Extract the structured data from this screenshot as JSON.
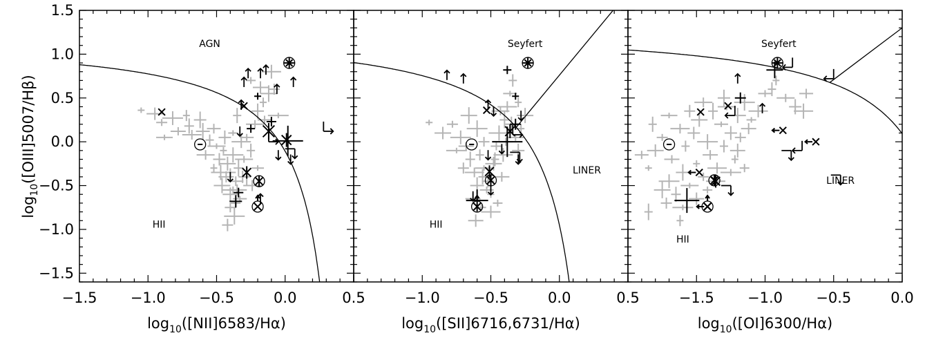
{
  "chart_data": [
    {
      "type": "scatter",
      "panel": "NII",
      "xlabel_parts": {
        "pre": "log",
        "sub": "10",
        "post": "([NII]6583/Hα)"
      },
      "ylabel_parts": {
        "pre": "log",
        "sub": "10",
        "post": "([OIII]5007/Hβ)"
      },
      "xlim": [
        -1.5,
        0.5
      ],
      "ylim": [
        -1.6,
        1.5
      ],
      "xticks": [
        -1.5,
        -1.0,
        -0.5,
        0.0,
        0.5
      ],
      "xtick_labels": [
        "−1.5",
        "−1.0",
        "−0.5",
        "0.0",
        "0.5"
      ],
      "yticks": [
        -1.5,
        -1.0,
        -0.5,
        0.0,
        0.5,
        1.0,
        1.5
      ],
      "ytick_labels": [
        "−1.5",
        "−1.0",
        "−0.5",
        "0.0",
        "0.5",
        "1.0",
        "1.5"
      ],
      "curve": {
        "a": 0.61,
        "b": 0.47,
        "c": 1.19
      },
      "regions": [
        {
          "text": "AGN",
          "x": -0.55,
          "y": 1.08
        },
        {
          "text": "HII",
          "x": -0.92,
          "y": -0.98
        }
      ],
      "gray_points": [
        [
          -1.05,
          0.36
        ],
        [
          -0.95,
          0.32
        ],
        [
          -0.9,
          0.22
        ],
        [
          -0.82,
          0.27
        ],
        [
          -0.78,
          0.12
        ],
        [
          -0.7,
          0.18
        ],
        [
          -0.68,
          0.08
        ],
        [
          -0.6,
          0.12
        ],
        [
          -0.55,
          0.02
        ],
        [
          -0.5,
          -0.05
        ],
        [
          -0.48,
          -0.2
        ],
        [
          -0.45,
          -0.1
        ],
        [
          -0.42,
          -0.25
        ],
        [
          -0.4,
          -0.35
        ],
        [
          -0.38,
          -0.15
        ],
        [
          -0.36,
          -0.45
        ],
        [
          -0.34,
          -0.3
        ],
        [
          -0.35,
          -0.55
        ],
        [
          -0.33,
          -0.65
        ],
        [
          -0.31,
          -0.4
        ],
        [
          -0.3,
          -0.2
        ],
        [
          -0.44,
          0.05
        ],
        [
          -0.52,
          -0.3
        ],
        [
          -0.46,
          -0.5
        ],
        [
          -0.4,
          -0.75
        ],
        [
          -0.37,
          -0.85
        ],
        [
          -0.43,
          -0.4
        ],
        [
          -0.38,
          0.1
        ],
        [
          -0.32,
          0.0
        ],
        [
          -0.28,
          0.05
        ],
        [
          -0.25,
          -0.1
        ],
        [
          -0.22,
          0.2
        ],
        [
          -0.2,
          0.35
        ],
        [
          -0.16,
          0.45
        ],
        [
          -0.12,
          0.55
        ],
        [
          -0.08,
          0.6
        ],
        [
          -0.05,
          0.3
        ],
        [
          -0.18,
          0.62
        ],
        [
          -0.25,
          0.7
        ],
        [
          -0.1,
          0.8
        ],
        [
          -0.15,
          0.25
        ],
        [
          -0.35,
          0.3
        ],
        [
          -0.58,
          -0.15
        ],
        [
          -0.62,
          0.25
        ],
        [
          -0.72,
          0.3
        ],
        [
          -0.88,
          0.05
        ],
        [
          -0.42,
          -0.95
        ],
        [
          -0.38,
          -0.55
        ],
        [
          -0.4,
          -0.6
        ],
        [
          -0.36,
          -0.7
        ],
        [
          -0.47,
          -0.35
        ],
        [
          -0.52,
          0.15
        ],
        [
          -0.28,
          -0.4
        ],
        [
          -0.24,
          -0.5
        ],
        [
          -0.2,
          -0.3
        ]
      ],
      "markers": [
        {
          "shape": "x",
          "x": -0.9,
          "y": 0.34,
          "s": 7
        },
        {
          "shape": "odot",
          "x": -0.62,
          "y": -0.03,
          "s": 8
        },
        {
          "shape": "cross",
          "x": -0.36,
          "y": -0.68,
          "s": 9
        },
        {
          "shape": "cross",
          "x": -0.34,
          "y": -0.58,
          "s": 7
        },
        {
          "shape": "star",
          "x": -0.28,
          "y": -0.35,
          "s": 9
        },
        {
          "shape": "star",
          "x": -0.12,
          "y": 0.12,
          "s": 12
        },
        {
          "shape": "cross",
          "x": 0.02,
          "y": 0.01,
          "s": 22
        },
        {
          "shape": "star",
          "x": 0.01,
          "y": 0.02,
          "s": 10
        },
        {
          "shape": "ostar",
          "x": 0.03,
          "y": 0.9,
          "s": 8
        },
        {
          "shape": "oplus",
          "x": -0.19,
          "y": -0.45,
          "s": 8
        },
        {
          "shape": "otimes",
          "x": -0.2,
          "y": -0.74,
          "s": 8
        },
        {
          "shape": "x",
          "x": -0.3,
          "y": 0.41,
          "s": 7
        },
        {
          "shape": "cross",
          "x": -0.1,
          "y": 0.23,
          "s": 7
        },
        {
          "shape": "cross",
          "x": -0.25,
          "y": 0.15,
          "s": 6
        },
        {
          "shape": "cross",
          "x": -0.2,
          "y": 0.52,
          "s": 5
        }
      ],
      "arrows": [
        {
          "x": -0.32,
          "y": 0.42,
          "d": "u"
        },
        {
          "x": -0.3,
          "y": 0.68,
          "d": "u"
        },
        {
          "x": -0.27,
          "y": 0.78,
          "d": "u"
        },
        {
          "x": -0.18,
          "y": 0.78,
          "d": "u"
        },
        {
          "x": -0.14,
          "y": 0.82,
          "d": "u"
        },
        {
          "x": -0.06,
          "y": 0.6,
          "d": "u"
        },
        {
          "x": 0.06,
          "y": 0.68,
          "d": "u"
        },
        {
          "x": -0.33,
          "y": 0.12,
          "d": "d"
        },
        {
          "x": -0.4,
          "y": -0.4,
          "d": "d"
        },
        {
          "x": -0.18,
          "y": -0.65,
          "d": "u"
        },
        {
          "x": -0.12,
          "y": 0.0,
          "d": "ru"
        },
        {
          "x": 0.28,
          "y": 0.12,
          "d": "ru"
        },
        {
          "x": 0.0,
          "y": -0.08,
          "d": "rd"
        },
        {
          "x": -0.05,
          "y": -0.15,
          "d": "d"
        },
        {
          "x": 0.04,
          "y": -0.2,
          "d": "d"
        }
      ]
    },
    {
      "type": "scatter",
      "panel": "SII",
      "xlabel_parts": {
        "pre": "log",
        "sub": "10",
        "post": "([SII]6716,6731/Hα)"
      },
      "xlim": [
        -1.5,
        0.5
      ],
      "ylim": [
        -1.6,
        1.5
      ],
      "xticks": [
        -1.0,
        -0.5,
        0.0,
        0.5
      ],
      "xtick_labels": [
        "−1.0",
        "−0.5",
        "0.0",
        "0.5"
      ],
      "curve": {
        "a": 0.72,
        "b": 0.32,
        "c": 1.3
      },
      "line": {
        "slope": 1.89,
        "intercept": 0.76
      },
      "regions": [
        {
          "text": "Seyfert",
          "x": -0.25,
          "y": 1.08
        },
        {
          "text": "LINER",
          "x": 0.2,
          "y": -0.36
        },
        {
          "text": "HII",
          "x": -0.9,
          "y": -0.98
        }
      ],
      "gray_points": [
        [
          -0.95,
          0.22
        ],
        [
          -0.85,
          0.1
        ],
        [
          -0.78,
          0.2
        ],
        [
          -0.72,
          0.05
        ],
        [
          -0.68,
          -0.05
        ],
        [
          -0.65,
          -0.2
        ],
        [
          -0.62,
          -0.35
        ],
        [
          -0.6,
          -0.5
        ],
        [
          -0.58,
          -0.15
        ],
        [
          -0.55,
          -0.3
        ],
        [
          -0.52,
          -0.45
        ],
        [
          -0.5,
          -0.6
        ],
        [
          -0.48,
          -0.25
        ],
        [
          -0.46,
          -0.05
        ],
        [
          -0.44,
          0.1
        ],
        [
          -0.42,
          -0.4
        ],
        [
          -0.4,
          0.25
        ],
        [
          -0.38,
          0.4
        ],
        [
          -0.36,
          0.55
        ],
        [
          -0.34,
          0.7
        ],
        [
          -0.32,
          0.05
        ],
        [
          -0.3,
          -0.1
        ],
        [
          -0.28,
          0.15
        ],
        [
          -0.25,
          0.3
        ],
        [
          -0.55,
          0.0
        ],
        [
          -0.6,
          0.15
        ],
        [
          -0.63,
          -0.65
        ],
        [
          -0.57,
          -0.75
        ],
        [
          -0.5,
          -0.8
        ],
        [
          -0.53,
          -0.55
        ],
        [
          -0.47,
          -0.2
        ],
        [
          -0.43,
          0.35
        ],
        [
          -0.35,
          0.2
        ],
        [
          -0.3,
          0.45
        ],
        [
          -0.66,
          0.3
        ],
        [
          -0.7,
          -0.3
        ],
        [
          -0.75,
          -0.1
        ],
        [
          -0.61,
          -0.9
        ],
        [
          -0.45,
          -0.7
        ],
        [
          -0.41,
          -0.15
        ],
        [
          -0.39,
          0.0
        ],
        [
          -0.56,
          -0.4
        ]
      ],
      "markers": [
        {
          "shape": "cross",
          "x": -0.6,
          "y": -0.67,
          "s": 16
        },
        {
          "shape": "odot",
          "x": -0.64,
          "y": -0.03,
          "s": 8
        },
        {
          "shape": "x",
          "x": -0.53,
          "y": 0.36,
          "s": 7
        },
        {
          "shape": "star",
          "x": -0.51,
          "y": -0.34,
          "s": 9
        },
        {
          "shape": "cross",
          "x": -0.38,
          "y": 0.0,
          "s": 22
        },
        {
          "shape": "star",
          "x": -0.36,
          "y": 0.12,
          "s": 10
        },
        {
          "shape": "ostar",
          "x": -0.23,
          "y": 0.9,
          "s": 8
        },
        {
          "shape": "oplus",
          "x": -0.5,
          "y": -0.44,
          "s": 8
        },
        {
          "shape": "otimes",
          "x": -0.6,
          "y": -0.74,
          "s": 8
        },
        {
          "shape": "cross",
          "x": -0.38,
          "y": 0.82,
          "s": 6
        },
        {
          "shape": "cross",
          "x": -0.32,
          "y": 0.52,
          "s": 5
        },
        {
          "shape": "cross",
          "x": -0.32,
          "y": 0.2,
          "s": 8
        }
      ],
      "arrows": [
        {
          "x": -0.82,
          "y": 0.76,
          "d": "u"
        },
        {
          "x": -0.7,
          "y": 0.72,
          "d": "u"
        },
        {
          "x": -0.52,
          "y": 0.42,
          "d": "u"
        },
        {
          "x": -0.48,
          "y": 0.35,
          "d": "d"
        },
        {
          "x": -0.42,
          "y": -0.08,
          "d": "d"
        },
        {
          "x": -0.52,
          "y": -0.15,
          "d": "d"
        },
        {
          "x": -0.5,
          "y": -0.55,
          "d": "d"
        },
        {
          "x": -0.63,
          "y": -0.62,
          "d": "d"
        },
        {
          "x": -0.3,
          "y": -0.2,
          "d": "d"
        },
        {
          "x": -0.28,
          "y": 0.3,
          "d": "d"
        },
        {
          "x": -0.34,
          "y": 0.08,
          "d": "ru"
        },
        {
          "x": -0.36,
          "y": -0.12,
          "d": "rd"
        }
      ]
    },
    {
      "type": "scatter",
      "panel": "OI",
      "xlabel_parts": {
        "pre": "log",
        "sub": "10",
        "post": "([OI]6300/Hα)"
      },
      "xlim": [
        -2.0,
        0.0
      ],
      "ylim": [
        -1.6,
        1.5
      ],
      "xticks": [
        -1.5,
        -1.0,
        -0.5,
        0.0
      ],
      "xtick_labels": [
        "−1.5",
        "−1.0",
        "−0.5",
        "0.0"
      ],
      "curve": {
        "a": 0.73,
        "b": 0.59,
        "c": 1.33
      },
      "line": {
        "slope": 1.18,
        "intercept": 1.3
      },
      "regions": [
        {
          "text": "Seyfert",
          "x": -0.9,
          "y": 1.08
        },
        {
          "text": "LINER",
          "x": -0.45,
          "y": -0.48
        },
        {
          "text": "HII",
          "x": -1.6,
          "y": -1.15
        }
      ],
      "gray_points": [
        [
          -1.85,
          -0.3
        ],
        [
          -1.8,
          -0.1
        ],
        [
          -1.75,
          0.05
        ],
        [
          -1.7,
          -0.45
        ],
        [
          -1.68,
          -0.2
        ],
        [
          -1.65,
          -0.6
        ],
        [
          -1.62,
          0.15
        ],
        [
          -1.6,
          -0.35
        ],
        [
          -1.58,
          -0.05
        ],
        [
          -1.55,
          -0.5
        ],
        [
          -1.52,
          0.1
        ],
        [
          -1.5,
          -0.25
        ],
        [
          -1.48,
          0.25
        ],
        [
          -1.45,
          -0.4
        ],
        [
          -1.42,
          0.0
        ],
        [
          -1.4,
          -0.15
        ],
        [
          -1.38,
          0.35
        ],
        [
          -1.35,
          -0.3
        ],
        [
          -1.32,
          0.2
        ],
        [
          -1.3,
          -0.05
        ],
        [
          -1.28,
          0.4
        ],
        [
          -1.25,
          0.1
        ],
        [
          -1.22,
          -0.2
        ],
        [
          -1.2,
          0.3
        ],
        [
          -1.18,
          0.05
        ],
        [
          -1.15,
          0.45
        ],
        [
          -1.12,
          0.15
        ],
        [
          -1.1,
          0.25
        ],
        [
          -1.05,
          0.35
        ],
        [
          -1.0,
          0.55
        ],
        [
          -0.95,
          0.6
        ],
        [
          -0.85,
          0.5
        ],
        [
          -0.78,
          0.4
        ],
        [
          -0.92,
          0.7
        ],
        [
          -1.75,
          -0.55
        ],
        [
          -1.72,
          -0.7
        ],
        [
          -1.6,
          -0.75
        ],
        [
          -1.5,
          -0.65
        ],
        [
          -1.42,
          -0.55
        ],
        [
          -1.36,
          -0.45
        ],
        [
          -1.9,
          -0.15
        ],
        [
          -1.82,
          0.2
        ],
        [
          -1.45,
          0.45
        ],
        [
          -1.3,
          0.5
        ],
        [
          -1.62,
          -0.9
        ],
        [
          -1.7,
          0.3
        ],
        [
          -1.55,
          0.35
        ],
        [
          -1.25,
          -0.35
        ],
        [
          -1.2,
          -0.1
        ],
        [
          -1.15,
          -0.3
        ],
        [
          -0.72,
          0.35
        ],
        [
          -0.7,
          0.55
        ],
        [
          -1.85,
          -0.8
        ]
      ],
      "markers": [
        {
          "shape": "cross",
          "x": -1.57,
          "y": -0.67,
          "s": 18
        },
        {
          "shape": "odot",
          "x": -1.7,
          "y": -0.03,
          "s": 8
        },
        {
          "shape": "x",
          "x": -1.47,
          "y": 0.34,
          "s": 7
        },
        {
          "shape": "x",
          "x": -1.27,
          "y": 0.41,
          "s": 7
        },
        {
          "shape": "star",
          "x": -1.36,
          "y": -0.45,
          "s": 9
        },
        {
          "shape": "oplus",
          "x": -1.37,
          "y": -0.44,
          "s": 8
        },
        {
          "shape": "otimes",
          "x": -1.42,
          "y": -0.74,
          "s": 8
        },
        {
          "shape": "ostar",
          "x": -0.91,
          "y": 0.9,
          "s": 8
        },
        {
          "shape": "cross",
          "x": -0.93,
          "y": 0.82,
          "s": 12
        },
        {
          "shape": "cross",
          "x": -1.18,
          "y": 0.5,
          "s": 8
        },
        {
          "shape": "lx",
          "x": -0.87,
          "y": 0.13,
          "s": 7
        },
        {
          "shape": "lx",
          "x": -0.63,
          "y": 0.0,
          "s": 7
        },
        {
          "shape": "lx",
          "x": -1.48,
          "y": -0.35,
          "s": 7
        },
        {
          "shape": "lx",
          "x": -1.42,
          "y": -0.74,
          "s": 7
        }
      ],
      "arrows": [
        {
          "x": -1.2,
          "y": 0.72,
          "d": "u"
        },
        {
          "x": -1.02,
          "y": 0.38,
          "d": "u"
        },
        {
          "x": -1.22,
          "y": 0.3,
          "d": "ld"
        },
        {
          "x": -0.8,
          "y": 0.85,
          "d": "ld"
        },
        {
          "x": -0.5,
          "y": 0.72,
          "d": "ld"
        },
        {
          "x": -0.88,
          "y": -0.1,
          "d": "rd"
        },
        {
          "x": -0.73,
          "y": -0.1,
          "d": "ld"
        },
        {
          "x": -0.52,
          "y": -0.38,
          "d": "rd"
        },
        {
          "x": -1.32,
          "y": -0.5,
          "d": "rd"
        }
      ]
    }
  ]
}
